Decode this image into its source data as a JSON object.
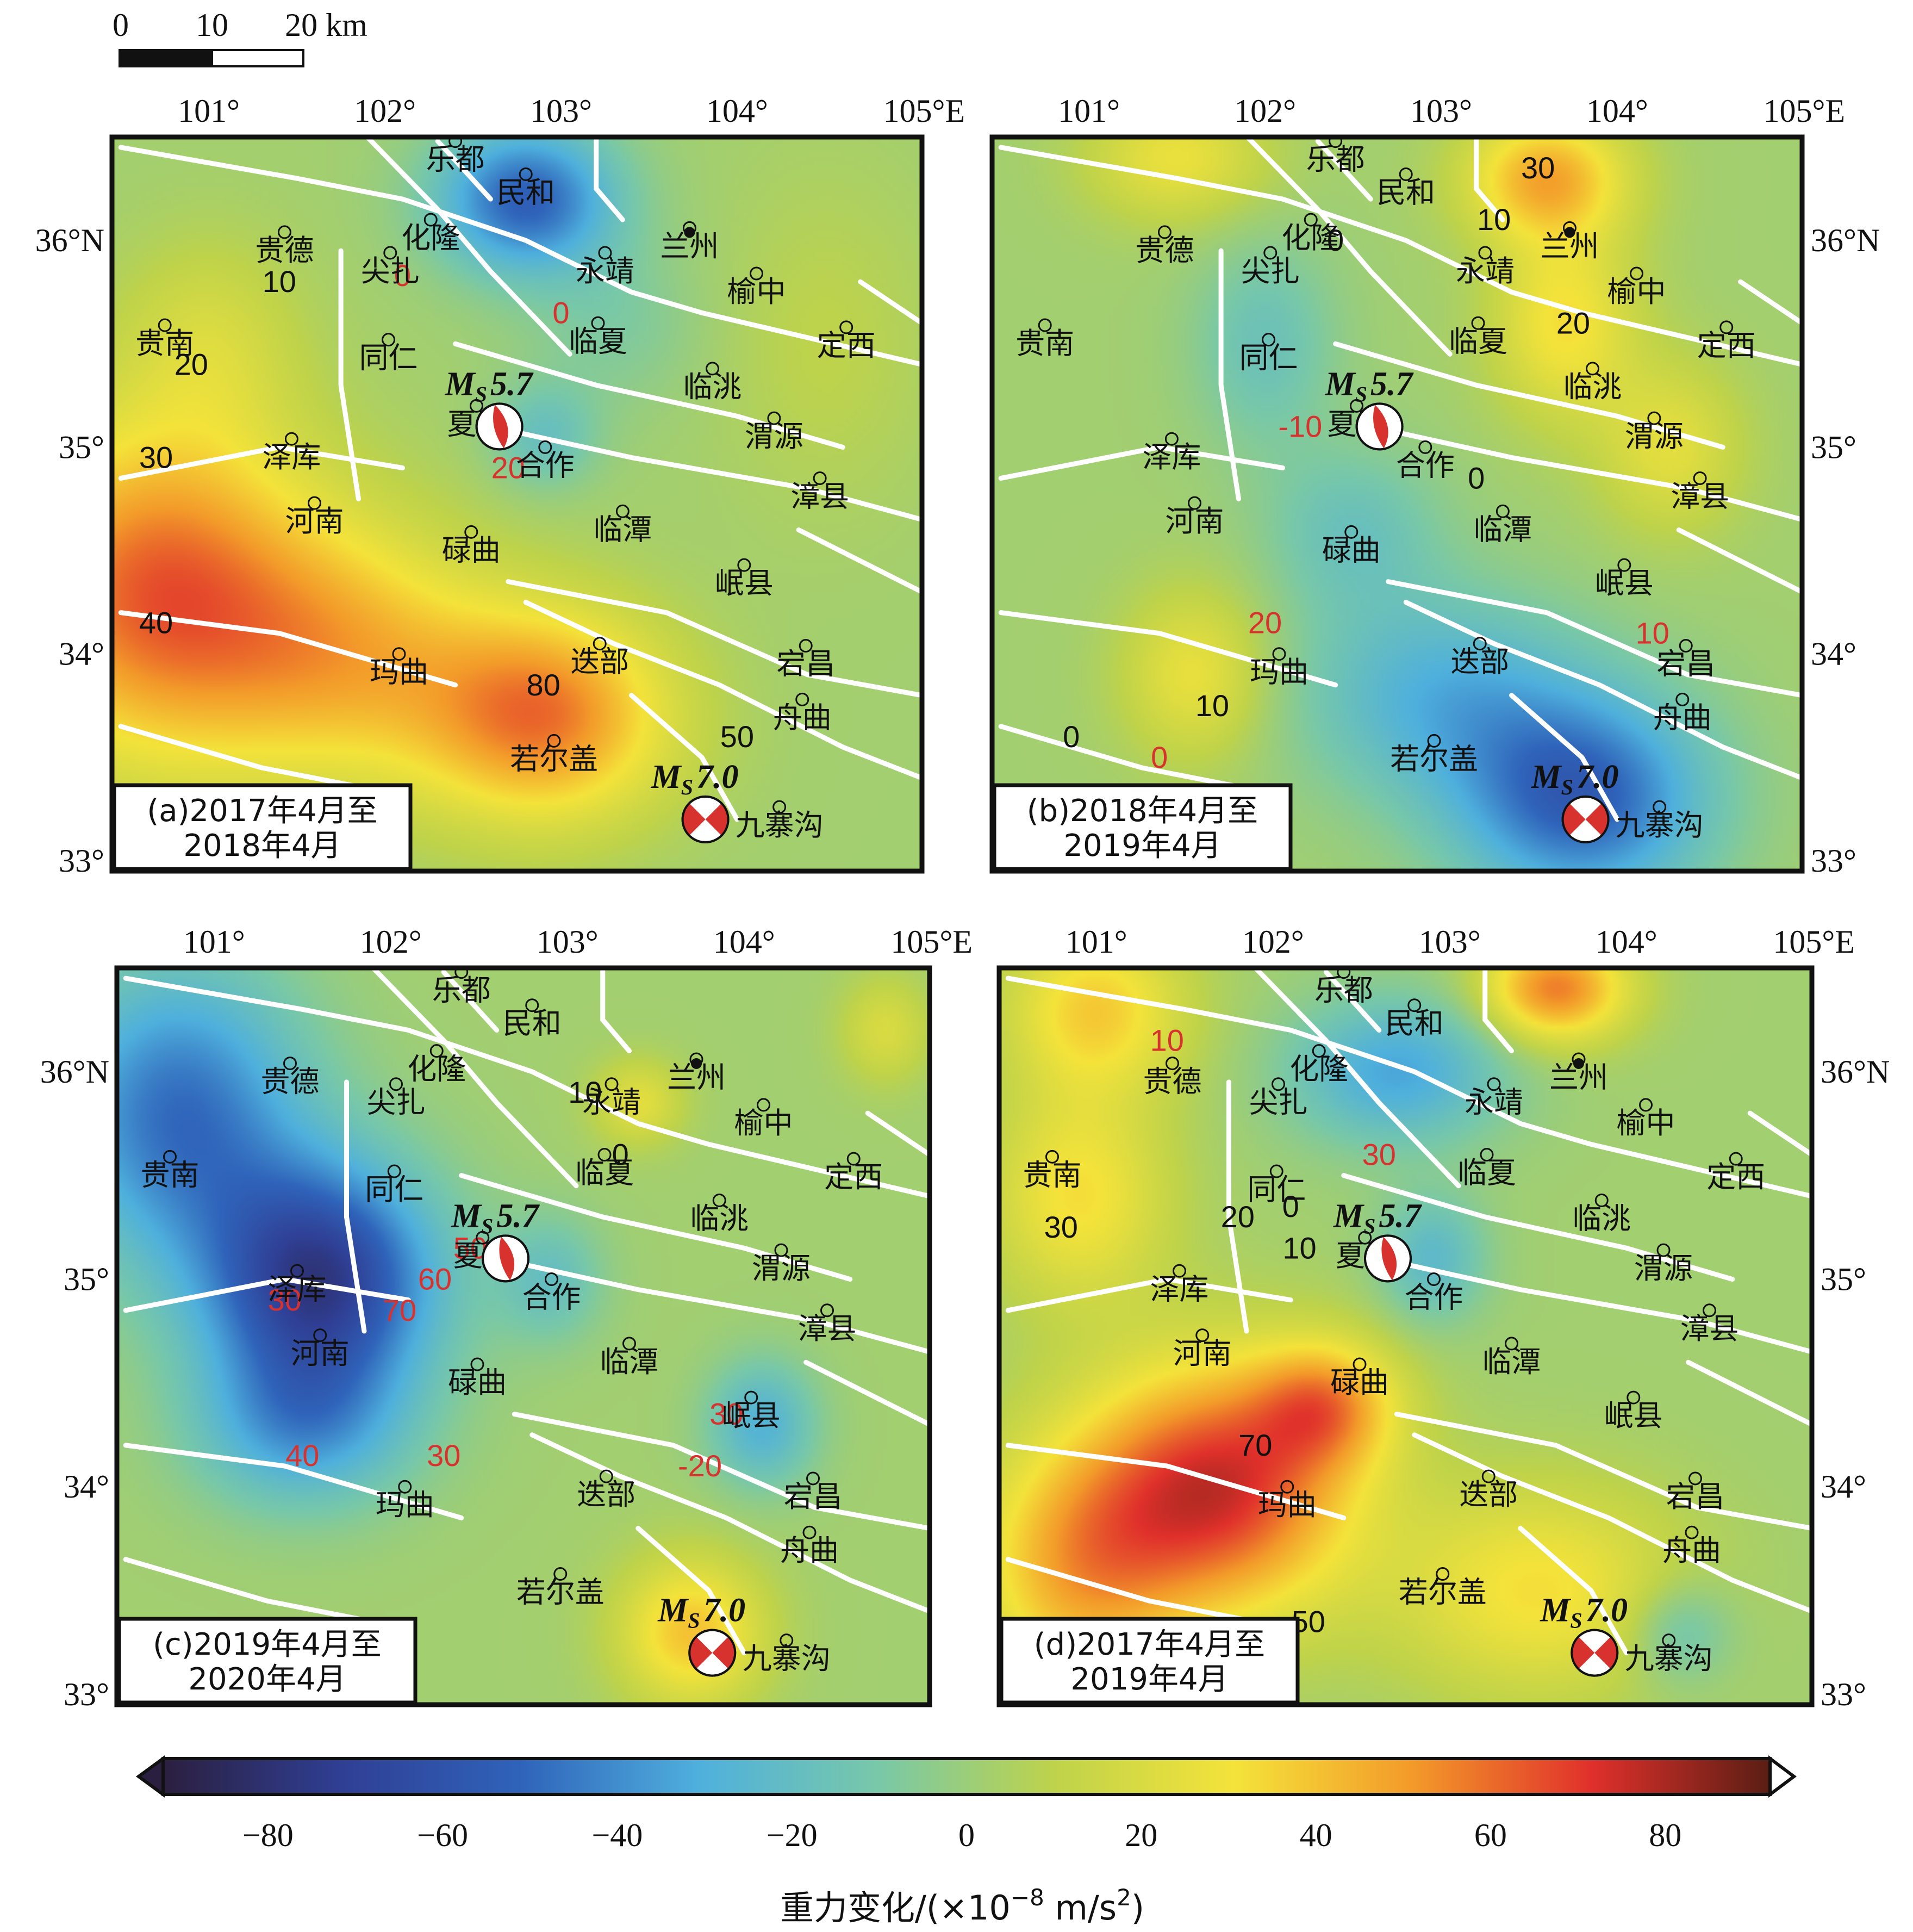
{
  "scale_bar": {
    "labels": [
      "0",
      "10",
      "20 km"
    ]
  },
  "lon_ticks": [
    "101°",
    "102°",
    "103°",
    "104°",
    "105°E"
  ],
  "lat_ticks_left": [
    "36°N",
    "35°",
    "34°",
    "33°"
  ],
  "lat_ticks_right": [
    "36°N",
    "35°",
    "34°",
    "33°"
  ],
  "cities": [
    {
      "id": "ledu",
      "name": "乐都",
      "lon": 102.4,
      "lat": 36.48
    },
    {
      "id": "minhe",
      "name": "民和",
      "lon": 102.8,
      "lat": 36.32
    },
    {
      "id": "hualong",
      "name": "化隆",
      "lon": 102.26,
      "lat": 36.1
    },
    {
      "id": "guide",
      "name": "贵德",
      "lon": 101.43,
      "lat": 36.04
    },
    {
      "id": "jianzha",
      "name": "尖扎",
      "lon": 102.03,
      "lat": 35.94
    },
    {
      "id": "yongjing",
      "name": "永靖",
      "lon": 103.25,
      "lat": 35.94
    },
    {
      "id": "lanzhou",
      "name": "兰州",
      "lon": 103.73,
      "lat": 36.06
    },
    {
      "id": "yuzhong",
      "name": "榆中",
      "lon": 104.11,
      "lat": 35.84
    },
    {
      "id": "guinan",
      "name": "贵南",
      "lon": 100.75,
      "lat": 35.59
    },
    {
      "id": "tongren",
      "name": "同仁",
      "lon": 102.02,
      "lat": 35.52
    },
    {
      "id": "linxia",
      "name": "临夏",
      "lon": 103.21,
      "lat": 35.6
    },
    {
      "id": "dingxi",
      "name": "定西",
      "lon": 104.62,
      "lat": 35.58
    },
    {
      "id": "lintao",
      "name": "临洮",
      "lon": 103.86,
      "lat": 35.38
    },
    {
      "id": "xiahe",
      "name": "夏河",
      "lon": 102.52,
      "lat": 35.2
    },
    {
      "id": "weiyuan",
      "name": "渭源",
      "lon": 104.21,
      "lat": 35.14
    },
    {
      "id": "zeku",
      "name": "泽库",
      "lon": 101.47,
      "lat": 35.04
    },
    {
      "id": "hezuo",
      "name": "合作",
      "lon": 102.91,
      "lat": 35.0
    },
    {
      "id": "zhangxian",
      "name": "漳县",
      "lon": 104.47,
      "lat": 34.85
    },
    {
      "id": "henan",
      "name": "河南",
      "lon": 101.6,
      "lat": 34.73
    },
    {
      "id": "lintan",
      "name": "临潭",
      "lon": 103.35,
      "lat": 34.69
    },
    {
      "id": "luqu",
      "name": "碌曲",
      "lon": 102.49,
      "lat": 34.59
    },
    {
      "id": "minxian",
      "name": "岷县",
      "lon": 104.04,
      "lat": 34.43
    },
    {
      "id": "diebu",
      "name": "迭部",
      "lon": 103.22,
      "lat": 34.05
    },
    {
      "id": "maqu",
      "name": "玛曲",
      "lon": 102.08,
      "lat": 34.0
    },
    {
      "id": "dangchang",
      "name": "宕昌",
      "lon": 104.39,
      "lat": 34.04
    },
    {
      "id": "zhouqu",
      "name": "舟曲",
      "lon": 104.37,
      "lat": 33.78
    },
    {
      "id": "ruoergai",
      "name": "若尔盖",
      "lon": 102.96,
      "lat": 33.58
    },
    {
      "id": "jiuzhaigou",
      "name": "九寨沟",
      "lon": 104.24,
      "lat": 33.26
    }
  ],
  "events": {
    "ms57": {
      "mag_prefix": "M",
      "mag_sub": "S",
      "mag_value": "5.7",
      "lon": 102.65,
      "lat": 35.1
    },
    "ms70": {
      "mag_prefix": "M",
      "mag_sub": "S",
      "mag_value": "7.0",
      "lon": 103.82,
      "lat": 33.2
    }
  },
  "panels": [
    {
      "id": "a",
      "title_line1": "(a)2017年4月至",
      "title_line2": "2018年4月",
      "contour_labels": [
        {
          "text": "10",
          "lon": 101.4,
          "lat": 35.75,
          "style": "solid"
        },
        {
          "text": "20",
          "lon": 100.9,
          "lat": 35.35,
          "style": "solid"
        },
        {
          "text": "30",
          "lon": 100.7,
          "lat": 34.9,
          "style": "solid"
        },
        {
          "text": "40",
          "lon": 100.7,
          "lat": 34.1,
          "style": "solid"
        },
        {
          "text": "80",
          "lon": 102.9,
          "lat": 33.8,
          "style": "solid"
        },
        {
          "text": "50",
          "lon": 104.0,
          "lat": 33.55,
          "style": "solid"
        },
        {
          "text": "0",
          "lon": 102.1,
          "lat": 35.78,
          "style": "dashed"
        },
        {
          "text": "0",
          "lon": 103.0,
          "lat": 35.6,
          "style": "dashed"
        },
        {
          "text": "20",
          "lon": 102.7,
          "lat": 34.85,
          "style": "dashed"
        }
      ],
      "field": [
        {
          "lon": 100.7,
          "lat": 34.3,
          "amp": 60,
          "sx": 0.9,
          "sy": 0.8
        },
        {
          "lon": 102.9,
          "lat": 33.7,
          "amp": 55,
          "sx": 0.7,
          "sy": 0.5
        },
        {
          "lon": 101.8,
          "lat": 34.0,
          "amp": 35,
          "sx": 0.8,
          "sy": 0.6
        },
        {
          "lon": 102.8,
          "lat": 36.2,
          "amp": -55,
          "sx": 0.5,
          "sy": 0.35
        },
        {
          "lon": 102.9,
          "lat": 35.05,
          "amp": -20,
          "sx": 0.3,
          "sy": 0.25
        },
        {
          "lon": 103.3,
          "lat": 35.6,
          "amp": -10,
          "sx": 0.5,
          "sy": 0.4
        },
        {
          "lon": 101.0,
          "lat": 35.5,
          "amp": 15,
          "sx": 0.5,
          "sy": 0.5
        },
        {
          "lon": 104.5,
          "lat": 35.5,
          "amp": 8,
          "sx": 0.6,
          "sy": 0.8
        }
      ]
    },
    {
      "id": "b",
      "title_line1": "(b)2018年4月至",
      "title_line2": "2019年4月",
      "contour_labels": [
        {
          "text": "30",
          "lon": 103.55,
          "lat": 36.3,
          "style": "solid"
        },
        {
          "text": "10",
          "lon": 103.3,
          "lat": 36.05,
          "style": "solid"
        },
        {
          "text": "0",
          "lon": 102.4,
          "lat": 35.95,
          "style": "solid"
        },
        {
          "text": "20",
          "lon": 103.75,
          "lat": 35.55,
          "style": "solid"
        },
        {
          "text": "0",
          "lon": 103.2,
          "lat": 34.8,
          "style": "solid"
        },
        {
          "text": "10",
          "lon": 101.7,
          "lat": 33.7,
          "style": "solid"
        },
        {
          "text": "0",
          "lon": 100.9,
          "lat": 33.55,
          "style": "solid"
        },
        {
          "text": "-10",
          "lon": 102.2,
          "lat": 35.05,
          "style": "dashed"
        },
        {
          "text": "20",
          "lon": 102.0,
          "lat": 34.1,
          "style": "dashed"
        },
        {
          "text": "10",
          "lon": 104.2,
          "lat": 34.05,
          "style": "dashed"
        },
        {
          "text": "0",
          "lon": 101.4,
          "lat": 33.45,
          "style": "dashed"
        }
      ],
      "field": [
        {
          "lon": 103.6,
          "lat": 36.3,
          "amp": 45,
          "sx": 0.45,
          "sy": 0.3
        },
        {
          "lon": 103.7,
          "lat": 35.6,
          "amp": 30,
          "sx": 0.4,
          "sy": 0.45
        },
        {
          "lon": 104.3,
          "lat": 35.0,
          "amp": 22,
          "sx": 0.4,
          "sy": 0.4
        },
        {
          "lon": 101.6,
          "lat": 33.9,
          "amp": 25,
          "sx": 0.4,
          "sy": 0.4
        },
        {
          "lon": 101.5,
          "lat": 36.4,
          "amp": 25,
          "sx": 0.5,
          "sy": 0.3
        },
        {
          "lon": 103.8,
          "lat": 33.3,
          "amp": -55,
          "sx": 0.7,
          "sy": 0.5
        },
        {
          "lon": 103.0,
          "lat": 33.8,
          "amp": -30,
          "sx": 0.8,
          "sy": 0.5
        },
        {
          "lon": 102.0,
          "lat": 35.5,
          "amp": -18,
          "sx": 0.4,
          "sy": 0.5
        },
        {
          "lon": 102.5,
          "lat": 34.6,
          "amp": -18,
          "sx": 0.5,
          "sy": 0.4
        }
      ]
    },
    {
      "id": "c",
      "title_line1": "(c)2019年4月至",
      "title_line2": "2020年4月",
      "contour_labels": [
        {
          "text": "10",
          "lon": 103.1,
          "lat": 35.85,
          "style": "solid"
        },
        {
          "text": "0",
          "lon": 103.3,
          "lat": 35.55,
          "style": "solid"
        },
        {
          "text": "60",
          "lon": 102.25,
          "lat": 34.95,
          "style": "dashed"
        },
        {
          "text": "70",
          "lon": 102.05,
          "lat": 34.8,
          "style": "dashed"
        },
        {
          "text": "50",
          "lon": 102.45,
          "lat": 35.1,
          "style": "dashed"
        },
        {
          "text": "40",
          "lon": 101.5,
          "lat": 34.1,
          "style": "dashed"
        },
        {
          "text": "30",
          "lon": 102.3,
          "lat": 34.1,
          "style": "dashed"
        },
        {
          "text": "30",
          "lon": 103.9,
          "lat": 34.3,
          "style": "dashed"
        },
        {
          "text": "-20",
          "lon": 103.75,
          "lat": 34.05,
          "style": "dashed"
        },
        {
          "text": "30",
          "lon": 101.4,
          "lat": 34.85,
          "style": "dashed"
        }
      ],
      "field": [
        {
          "lon": 101.6,
          "lat": 35.0,
          "amp": -75,
          "sx": 0.65,
          "sy": 0.55
        },
        {
          "lon": 100.8,
          "lat": 35.8,
          "amp": -50,
          "sx": 0.7,
          "sy": 0.7
        },
        {
          "lon": 101.5,
          "lat": 34.3,
          "amp": -35,
          "sx": 0.6,
          "sy": 0.4
        },
        {
          "lon": 104.1,
          "lat": 34.3,
          "amp": -30,
          "sx": 0.3,
          "sy": 0.3
        },
        {
          "lon": 102.9,
          "lat": 35.0,
          "amp": -20,
          "sx": 0.3,
          "sy": 0.3
        },
        {
          "lon": 103.7,
          "lat": 33.3,
          "amp": 38,
          "sx": 0.4,
          "sy": 0.35
        },
        {
          "lon": 103.4,
          "lat": 35.85,
          "amp": 22,
          "sx": 0.25,
          "sy": 0.2
        },
        {
          "lon": 104.8,
          "lat": 36.2,
          "amp": 18,
          "sx": 0.25,
          "sy": 0.25
        }
      ]
    },
    {
      "id": "d",
      "title_line1": "(d)2017年4月至",
      "title_line2": "2019年4月",
      "contour_labels": [
        {
          "text": "30",
          "lon": 100.8,
          "lat": 35.2,
          "style": "solid"
        },
        {
          "text": "20",
          "lon": 101.8,
          "lat": 35.25,
          "style": "solid"
        },
        {
          "text": "10",
          "lon": 102.15,
          "lat": 35.1,
          "style": "solid"
        },
        {
          "text": "0",
          "lon": 102.1,
          "lat": 35.3,
          "style": "solid"
        },
        {
          "text": "70",
          "lon": 101.9,
          "lat": 34.15,
          "style": "solid"
        },
        {
          "text": "50",
          "lon": 102.2,
          "lat": 33.3,
          "style": "solid"
        },
        {
          "text": "30",
          "lon": 102.6,
          "lat": 35.55,
          "style": "dashed"
        },
        {
          "text": "10",
          "lon": 101.4,
          "lat": 36.1,
          "style": "dashed"
        }
      ],
      "field": [
        {
          "lon": 101.7,
          "lat": 34.0,
          "amp": 70,
          "sx": 0.75,
          "sy": 0.6
        },
        {
          "lon": 102.3,
          "lat": 34.4,
          "amp": 40,
          "sx": 0.4,
          "sy": 0.3
        },
        {
          "lon": 100.9,
          "lat": 33.6,
          "amp": 40,
          "sx": 0.6,
          "sy": 0.6
        },
        {
          "lon": 103.6,
          "lat": 36.4,
          "amp": 55,
          "sx": 0.4,
          "sy": 0.25
        },
        {
          "lon": 103.5,
          "lat": 33.5,
          "amp": 30,
          "sx": 0.8,
          "sy": 0.5
        },
        {
          "lon": 101.0,
          "lat": 36.3,
          "amp": 35,
          "sx": 0.5,
          "sy": 0.4
        },
        {
          "lon": 100.9,
          "lat": 35.4,
          "amp": 30,
          "sx": 0.5,
          "sy": 0.5
        },
        {
          "lon": 102.7,
          "lat": 36.0,
          "amp": -35,
          "sx": 0.6,
          "sy": 0.35
        },
        {
          "lon": 102.9,
          "lat": 35.1,
          "amp": -25,
          "sx": 0.3,
          "sy": 0.3
        },
        {
          "lon": 104.3,
          "lat": 33.3,
          "amp": -20,
          "sx": 0.3,
          "sy": 0.25
        }
      ]
    }
  ],
  "colorbar": {
    "ticks": [
      "−80",
      "−60",
      "−40",
      "−20",
      "0",
      "20",
      "40",
      "60",
      "80"
    ],
    "tick_values": [
      -80,
      -60,
      -40,
      -20,
      0,
      20,
      40,
      60,
      80
    ],
    "range": [
      -92,
      92
    ],
    "unit_label": "重力变化/(×10",
    "unit_exp": "−8",
    "unit_tail": " m/s",
    "unit_sq": "2",
    "unit_close": ")"
  },
  "colors": {
    "fault": "#ffffff",
    "contour_positive": "#111111",
    "contour_negative": "#d8322f",
    "stops": [
      "#2b1f3f",
      "#2f3f94",
      "#2f63ba",
      "#4fb0dd",
      "#78c8a9",
      "#bfd34a",
      "#f4e33a",
      "#f39a2a",
      "#e0302b",
      "#5a1e14"
    ]
  }
}
